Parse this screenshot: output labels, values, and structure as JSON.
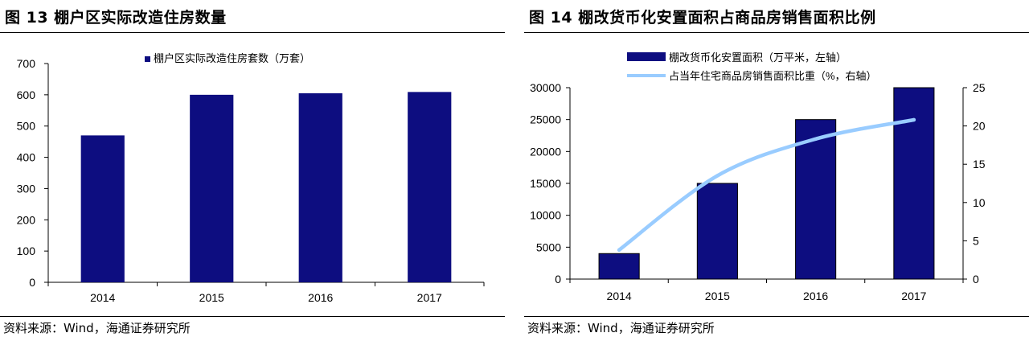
{
  "figures": [
    {
      "title": "图 13 棚户区实际改造住房数量",
      "source": "资料来源：Wind，海通证券研究所"
    },
    {
      "title": "图 14 棚改货币化安置面积占商品房销售面积比例",
      "source": "资料来源：Wind，海通证券研究所"
    }
  ],
  "chart_data": [
    {
      "type": "bar",
      "categories": [
        "2014",
        "2015",
        "2016",
        "2017"
      ],
      "series": [
        {
          "name": "棚户区实际改造住房套数（万套）",
          "values": [
            470,
            600,
            605,
            609
          ],
          "color": "#0d0d80"
        }
      ],
      "ylim": [
        0,
        700
      ],
      "yticks": [
        "0",
        "100",
        "200",
        "300",
        "400",
        "500",
        "600",
        "700"
      ],
      "legend_position": "top",
      "grid": false
    },
    {
      "type": "bar",
      "categories": [
        "2014",
        "2015",
        "2016",
        "2017"
      ],
      "series": [
        {
          "name": "棚改货币化安置面积（万平米，左轴）",
          "type": "bar",
          "axis": "left",
          "values": [
            4000,
            15000,
            25000,
            30000
          ],
          "color": "#0d0d80"
        },
        {
          "name": "占当年住宅商品房销售面积比重（%，右轴）",
          "type": "line",
          "axis": "right",
          "values": [
            3.8,
            13.5,
            18.3,
            20.8
          ],
          "color": "#99ccff"
        }
      ],
      "ylim_left": [
        0,
        30000
      ],
      "yticks_left": [
        "0",
        "5000",
        "10000",
        "15000",
        "20000",
        "25000",
        "30000"
      ],
      "ylim_right": [
        0,
        25
      ],
      "yticks_right": [
        "0",
        "5",
        "10",
        "15",
        "20",
        "25"
      ],
      "legend_position": "top",
      "grid": false
    }
  ]
}
